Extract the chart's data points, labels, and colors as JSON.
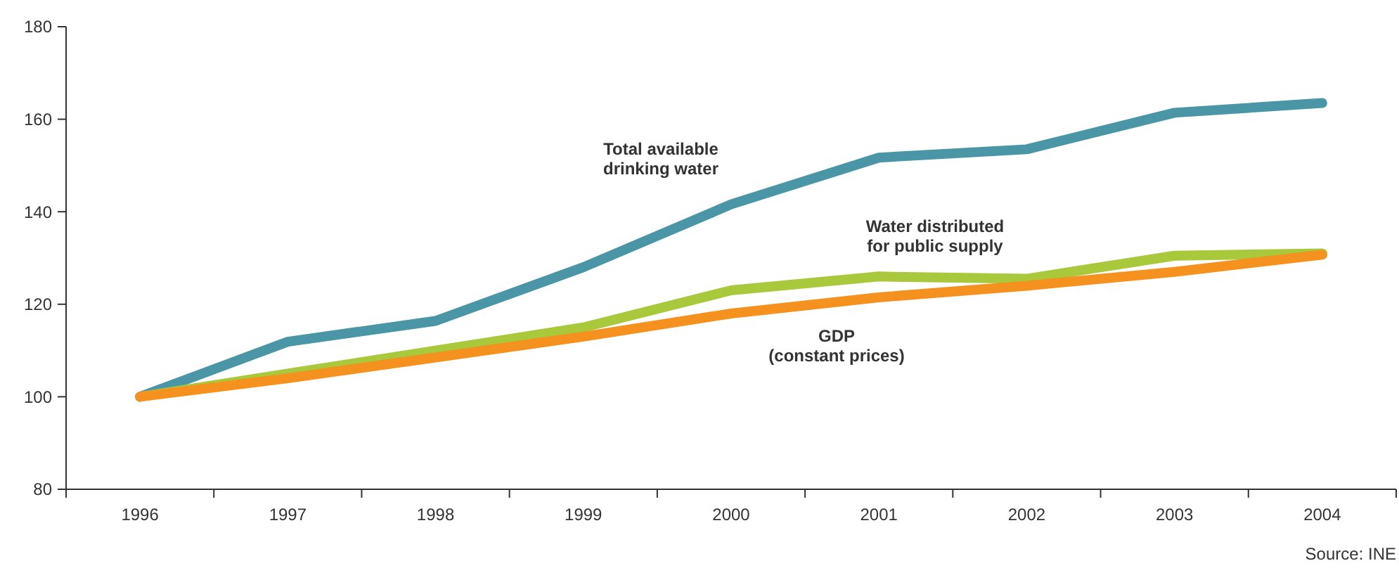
{
  "chart_data": {
    "type": "line",
    "categories": [
      "1996",
      "1997",
      "1998",
      "1999",
      "2000",
      "2001",
      "2002",
      "2003",
      "2004"
    ],
    "series": [
      {
        "name": "Total available\ndrinking water",
        "color": "#4a96a6",
        "values": [
          100,
          111.9,
          116.4,
          128,
          141.6,
          151.7,
          153.5,
          161.4,
          163.5
        ]
      },
      {
        "name": "Water distributed\nfor public supply",
        "color": "#a9c83c",
        "values": [
          100,
          105,
          110,
          115,
          123,
          126,
          125.5,
          130.5,
          131
        ]
      },
      {
        "name": "GDP\n(constant prices)",
        "color": "#f5911e",
        "values": [
          100,
          104,
          108.5,
          113,
          118,
          121.5,
          124,
          127,
          130.7
        ]
      }
    ],
    "ylim": [
      80,
      180
    ],
    "yticks": [
      80,
      100,
      120,
      140,
      160,
      180
    ],
    "grid": false,
    "marker": "none",
    "line_style": "solid",
    "annotations": [
      "Source: INE"
    ]
  }
}
